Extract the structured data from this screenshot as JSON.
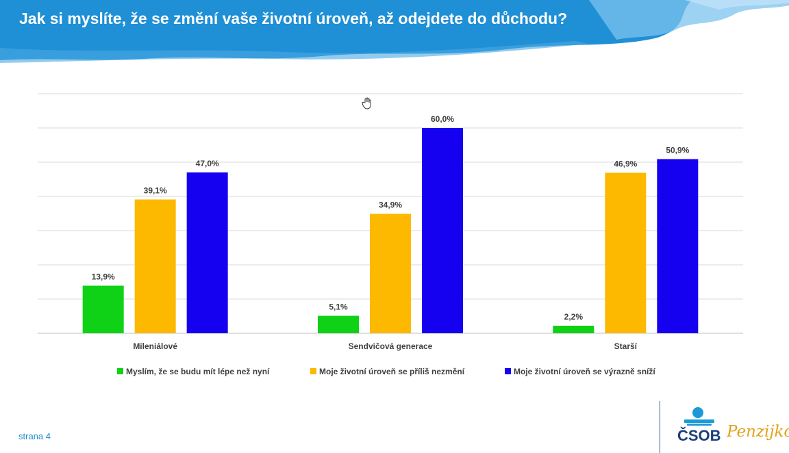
{
  "title": "Jak si myslíte, že se změní vaše životní úroveň, až odejdete do důchodu?",
  "page_number": "strana 4",
  "logo": {
    "bank": "ČSOB",
    "product": "Penzijko"
  },
  "colors": {
    "header": "#1f8fd6",
    "green": "#0fd116",
    "yellow": "#fcb900",
    "blue": "#1600f0",
    "grid": "#d9d9d9"
  },
  "chart_data": {
    "type": "bar",
    "categories": [
      "Mileniálové",
      "Sendvičová generace",
      "Starší"
    ],
    "series": [
      {
        "name": "Myslím, že se budu mít lépe než nyní",
        "values": [
          13.9,
          5.1,
          2.2
        ],
        "labels": [
          "13,9%",
          "5,1%",
          "2,2%"
        ],
        "color": "#0fd116"
      },
      {
        "name": "Moje životní úroveň se příliš nezmění",
        "values": [
          39.1,
          34.9,
          46.9
        ],
        "labels": [
          "39,1%",
          "34,9%",
          "46,9%"
        ],
        "color": "#fcb900"
      },
      {
        "name": "Moje životní úroveň se výrazně sníží",
        "values": [
          47.0,
          60.0,
          50.9
        ],
        "labels": [
          "47,0%",
          "60,0%",
          "50,9%"
        ],
        "color": "#1600f0"
      }
    ],
    "ylim": [
      0,
      70
    ],
    "grid": true,
    "legend": "bottom"
  }
}
